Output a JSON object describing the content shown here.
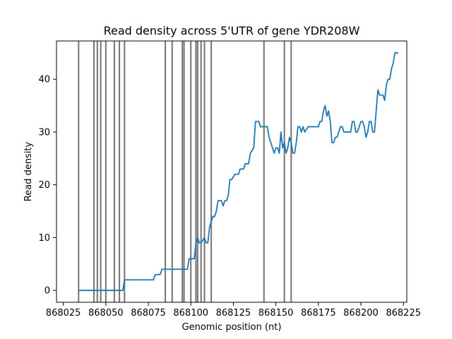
{
  "chart_data": {
    "type": "line",
    "title": "Read density across 5'UTR of gene YDR208W",
    "xlabel": "Genomic position (nt)",
    "ylabel": "Read density",
    "xlim": [
      868021,
      868227
    ],
    "ylim": [
      -2.25,
      47.25
    ],
    "xticks": [
      868025,
      868050,
      868075,
      868100,
      868125,
      868150,
      868175,
      868200,
      868225
    ],
    "yticks": [
      0,
      10,
      20,
      30,
      40
    ],
    "grid": false,
    "legend": "none",
    "color": "#1f77b4",
    "vertical_lines_x": [
      868034,
      868043,
      868045,
      868047,
      868050,
      868055,
      868058,
      868061,
      868085,
      868089,
      868095,
      868096,
      868100,
      868103,
      868104,
      868106,
      868108,
      868112,
      868143,
      868155,
      868159
    ],
    "series": [
      {
        "x": [
          868034,
          868035,
          868040,
          868045,
          868050,
          868055,
          868060,
          868061,
          868062,
          868070,
          868078,
          868079,
          868082,
          868083,
          868090,
          868098,
          868099,
          868102,
          868103,
          868104,
          868105,
          868106,
          868108,
          868109,
          868110,
          868111,
          868113,
          868114,
          868115,
          868116,
          868118,
          868119,
          868120,
          868121,
          868122,
          868123,
          868124,
          868126,
          868127,
          868128,
          868129,
          868131,
          868132,
          868134,
          868135,
          868137,
          868138,
          868139,
          868140,
          868141,
          868142,
          868143,
          868145,
          868146,
          868148,
          868149,
          868150,
          868151,
          868152,
          868153,
          868154,
          868155,
          868156,
          868157,
          868158,
          868159,
          868160,
          868161,
          868162,
          868163,
          868164,
          868165,
          868166,
          868167,
          868169,
          868170,
          868172,
          868174,
          868175,
          868176,
          868177,
          868178,
          868179,
          868180,
          868181,
          868182,
          868183,
          868184,
          868185,
          868186,
          868187,
          868188,
          868189,
          868190,
          868191,
          868192,
          868194,
          868195,
          868196,
          868197,
          868198,
          868199,
          868200,
          868201,
          868202,
          868203,
          868204,
          868205,
          868206,
          868207,
          868208,
          868209,
          868210,
          868211,
          868212,
          868213,
          868214,
          868215,
          868216,
          868217,
          868218,
          868219,
          868220,
          868221,
          868222
        ],
        "y": [
          0,
          0,
          0,
          0,
          0,
          0,
          0,
          2,
          2,
          2,
          2,
          3,
          3,
          4,
          4,
          4,
          6,
          6,
          9,
          10,
          9,
          9,
          10,
          9,
          9,
          12,
          14,
          14,
          15,
          17,
          17,
          16,
          17,
          17,
          18,
          21,
          21,
          22,
          22,
          22,
          23,
          23,
          24,
          24,
          26,
          27,
          32,
          32,
          32,
          31,
          31,
          31,
          31,
          29,
          27,
          26,
          27,
          27,
          26,
          30,
          27,
          28,
          26,
          27,
          29,
          28,
          26,
          26,
          28,
          31,
          31,
          30,
          31,
          30,
          31,
          31,
          31,
          31,
          31,
          32,
          32,
          34,
          35,
          33,
          34,
          32,
          28,
          28,
          29,
          29,
          30,
          31,
          31,
          30,
          30,
          30,
          30,
          32,
          32,
          30,
          30,
          31,
          32,
          32,
          31,
          29,
          30,
          32,
          32,
          30,
          30,
          34,
          38,
          37,
          37,
          37,
          36,
          39,
          40,
          40,
          42,
          43,
          45,
          45,
          45
        ]
      }
    ]
  }
}
